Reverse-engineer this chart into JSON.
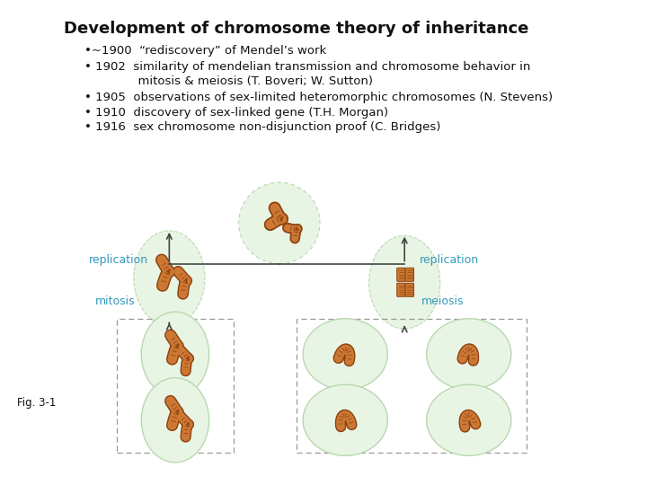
{
  "title": "Development of chromosome theory of inheritance",
  "bullet_lines": [
    "•~1900  “rediscovery” of Mendel’s work",
    "• 1902  similarity of mendelian transmission and chromosome behavior in",
    "              mitosis & meiosis (T. Boveri; W. Sutton)",
    "• 1905  observations of sex-limited heteromorphic chromosomes (N. Stevens)",
    "• 1910  discovery of sex-linked gene (T.H. Morgan)",
    "• 1916  sex chromosome non-disjunction proof (C. Bridges)"
  ],
  "label_rep_left": "replication",
  "label_rep_right": "replication",
  "label_mitosis": "mitosis",
  "label_meiosis": "meiosis",
  "label_fig": "Fig. 3-1",
  "cell_face": "#e8f5e4",
  "cell_edge": "#b8d8b0",
  "chrom_fill": "#cc7733",
  "chrom_dark": "#8b4010",
  "chrom_light": "#e8a060",
  "arrow_col": "#444444",
  "label_col": "#3399bb",
  "bg": "#ffffff",
  "title_fs": 13,
  "bullet_fs": 9.5,
  "label_fs": 9
}
